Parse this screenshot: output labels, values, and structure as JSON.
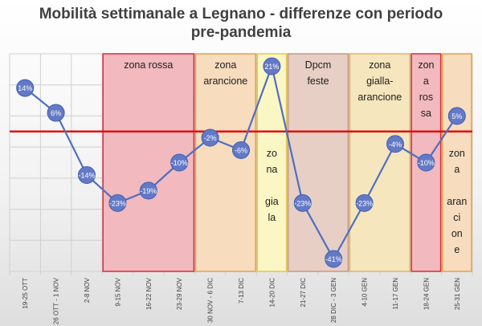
{
  "chart_data": {
    "type": "line",
    "title": "Mobilità settimanale a Legnano - differenze con periodo",
    "title_line2": "pre-pandemia",
    "categories": [
      "19-25 OTT",
      "26 OTT - 1 NOV",
      "2-8 NOV",
      "9-15 NOV",
      "16-22 NOV",
      "23-29 NOV",
      "30 NOV - 6 DIC",
      "7-13 DIC",
      "14-20 DIC",
      "21-27 DIC",
      "28 DIC - 3 GEN",
      "4-10 GEN",
      "11-17 GEN",
      "18-24 GEN",
      "25-31 GEN"
    ],
    "values": [
      14,
      6,
      -14,
      -23,
      -19,
      -10,
      -2,
      -6,
      21,
      -23,
      -41,
      -23,
      -4,
      -10,
      5
    ],
    "data_labels": [
      "14%",
      "6%",
      "-14%",
      "-23%",
      "-19%",
      "-10%",
      "-2%",
      "-6%",
      "21%",
      "-23%",
      "-41%",
      "-23%",
      "-4%",
      "-10%",
      "5%"
    ],
    "ylim": [
      -45,
      25
    ],
    "reference_line": 0,
    "grid": true,
    "line_color": "#4f6fbf",
    "marker_fill": "#6479c6",
    "marker_line_color": "#3f5fb3",
    "reference_line_color": "#e31010",
    "zones": [
      {
        "label_lines": [
          "zona rossa"
        ],
        "start": 3,
        "end": 5,
        "fill": "#f2b9be",
        "stroke": "#d92b3f"
      },
      {
        "label_lines": [
          "zona",
          "arancione"
        ],
        "start": 6,
        "end": 7,
        "fill": "#f8dcbe",
        "stroke": "#e3a14c"
      },
      {
        "label_lines": [
          "zo",
          "na",
          "",
          "gia",
          "la"
        ],
        "start": 8,
        "end": 8,
        "fill": "#fbf7c4",
        "stroke": "#e6c44f"
      },
      {
        "label_lines": [
          "Dpcm",
          "feste"
        ],
        "start": 9,
        "end": 10,
        "fill": "#e7cfc5",
        "stroke": "#c59a83"
      },
      {
        "label_lines": [
          "zona",
          "gialla-",
          "arancione"
        ],
        "start": 11,
        "end": 12,
        "fill": "#f6e6bd",
        "stroke": "#dcb76a"
      },
      {
        "label_lines": [
          "zon",
          "a",
          "ros",
          "sa"
        ],
        "start": 13,
        "end": 13,
        "fill": "#f2b9be",
        "stroke": "#d92b3f"
      },
      {
        "label_lines": [
          "zon",
          "a",
          "",
          "aran",
          "ci",
          "on",
          "e"
        ],
        "start": 14,
        "end": 14,
        "fill": "#f8dcbe",
        "stroke": "#e3a14c"
      }
    ]
  }
}
